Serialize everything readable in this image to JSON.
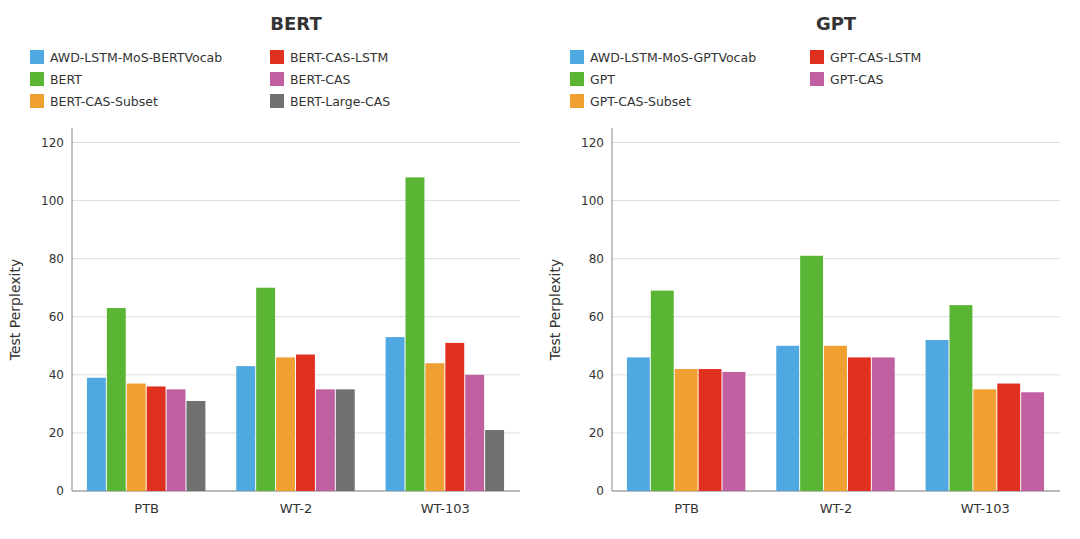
{
  "chart_data": [
    {
      "type": "bar",
      "title": "BERT",
      "categories": [
        "PTB",
        "WT-2",
        "WT-103"
      ],
      "series": [
        {
          "name": "AWD-LSTM-MoS-BERTVocab",
          "color": "#4fa8e0",
          "values": [
            39,
            43,
            53
          ]
        },
        {
          "name": "BERT",
          "color": "#5ab534",
          "values": [
            63,
            70,
            108
          ]
        },
        {
          "name": "BERT-CAS-Subset",
          "color": "#f0a030",
          "values": [
            37,
            46,
            44
          ]
        },
        {
          "name": "BERT-CAS-LSTM",
          "color": "#e03020",
          "values": [
            36,
            47,
            51
          ]
        },
        {
          "name": "BERT-CAS",
          "color": "#c060a0",
          "values": [
            35,
            35,
            40
          ]
        },
        {
          "name": "BERT-Large-CAS",
          "color": "#707070",
          "values": [
            31,
            35,
            21
          ]
        }
      ],
      "ylabel": "Test Perplexity",
      "ylim": [
        0,
        125
      ],
      "yticks": [
        0,
        20,
        40,
        60,
        80,
        100,
        120
      ],
      "grid": true,
      "legend": "top"
    },
    {
      "type": "bar",
      "title": "GPT",
      "categories": [
        "PTB",
        "WT-2",
        "WT-103"
      ],
      "series": [
        {
          "name": "AWD-LSTM-MoS-GPTVocab",
          "color": "#4fa8e0",
          "values": [
            46,
            50,
            52
          ]
        },
        {
          "name": "GPT",
          "color": "#5ab534",
          "values": [
            69,
            81,
            64
          ]
        },
        {
          "name": "GPT-CAS-Subset",
          "color": "#f0a030",
          "values": [
            42,
            50,
            35
          ]
        },
        {
          "name": "GPT-CAS-LSTM",
          "color": "#e03020",
          "values": [
            42,
            46,
            37
          ]
        },
        {
          "name": "GPT-CAS",
          "color": "#c060a0",
          "values": [
            41,
            46,
            34
          ]
        }
      ],
      "ylabel": "Test Perplexity",
      "ylim": [
        0,
        125
      ],
      "yticks": [
        0,
        20,
        40,
        60,
        80,
        100,
        120
      ],
      "grid": true,
      "legend": "top"
    }
  ]
}
